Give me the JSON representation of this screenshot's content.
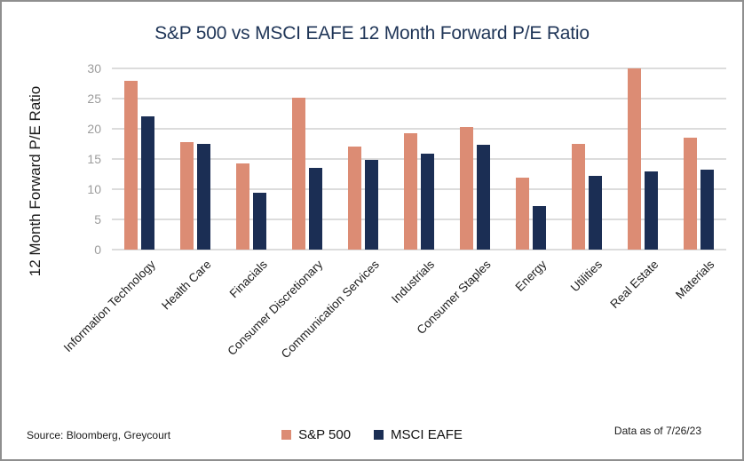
{
  "title": "S&P 500 vs MSCI EAFE 12 Month Forward P/E Ratio",
  "source_text": "Source: Bloomberg, Greycourt",
  "data_as_of": "Data as of 7/26/23",
  "colors": {
    "sp500": "#dc8c74",
    "msci_eafe": "#1b2e54",
    "title_text": "#1f3557",
    "gridline": "#dcdcdc",
    "y_tick_text": "#9c9c9c"
  },
  "chart_data": {
    "type": "bar",
    "title": "S&P 500 vs MSCI EAFE 12 Month Forward P/E Ratio",
    "xlabel": "",
    "ylabel": "12 Month Forward P/E Ratio",
    "ylim": [
      0,
      30
    ],
    "yticks": [
      0,
      5,
      10,
      15,
      20,
      25,
      30
    ],
    "grid": "horizontal",
    "legend_position": "bottom-center",
    "categories": [
      "Information Technology",
      "Health Care",
      "Finacials",
      "Consumer Discretionary",
      "Communication Services",
      "Industrials",
      "Consumer Staples",
      "Energy",
      "Utilities",
      "Real Estate",
      "Materials"
    ],
    "series": [
      {
        "name": "S&P 500",
        "color": "#dc8c74",
        "values": [
          28.0,
          17.8,
          14.2,
          25.2,
          17.1,
          19.2,
          20.3,
          11.9,
          17.5,
          30.0,
          18.5
        ]
      },
      {
        "name": "MSCI EAFE",
        "color": "#1b2e54",
        "values": [
          22.1,
          17.5,
          9.4,
          13.6,
          14.8,
          15.9,
          17.4,
          7.2,
          12.2,
          13.0,
          13.2
        ]
      }
    ]
  }
}
